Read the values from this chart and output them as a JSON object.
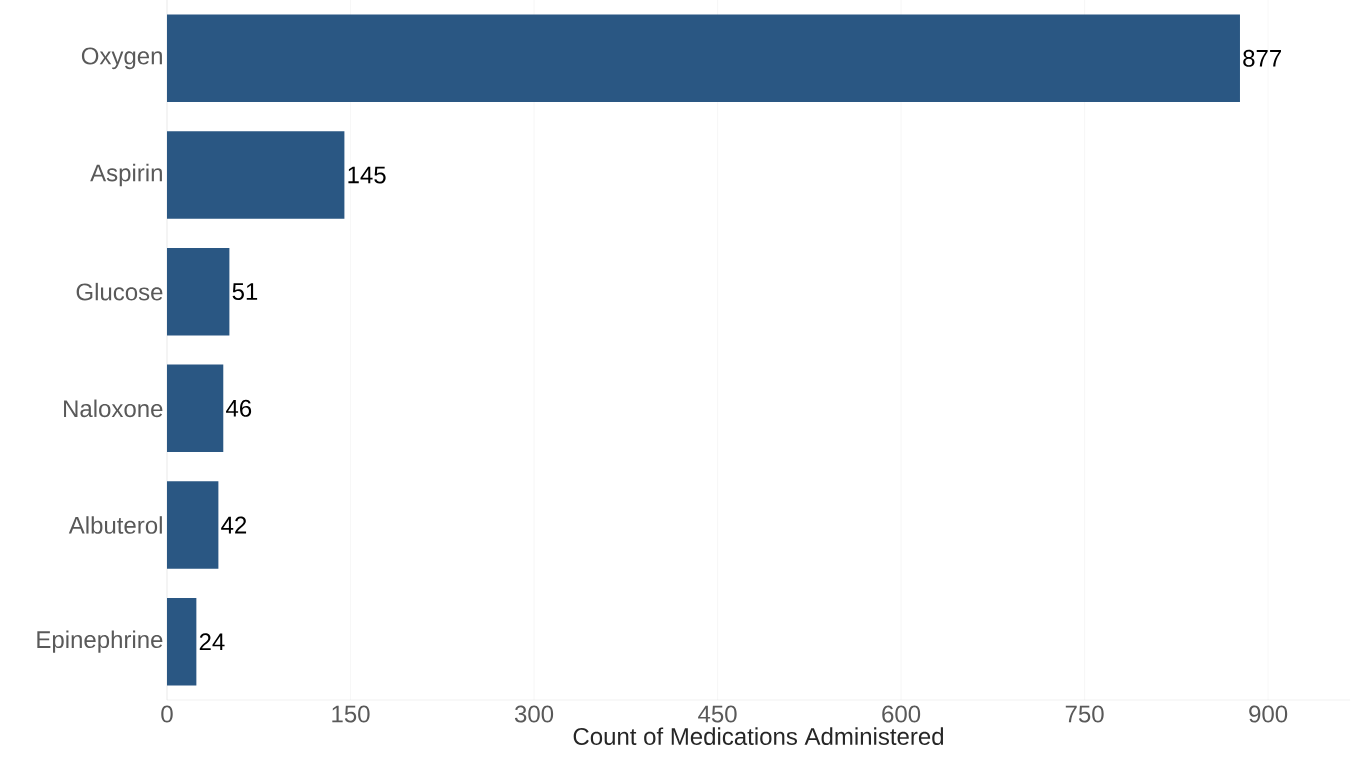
{
  "chart_data": {
    "type": "bar",
    "orientation": "horizontal",
    "xlabel": "Count of Medications Administered",
    "categories": [
      "Oxygen",
      "Aspirin",
      "Glucose",
      "Naloxone",
      "Albuterol",
      "Epinephrine"
    ],
    "values": [
      877,
      145,
      51,
      46,
      42,
      24
    ],
    "color": "#2a5783",
    "xlim": [
      0,
      967
    ],
    "xticks": [
      0,
      150,
      300,
      450,
      600,
      750,
      900
    ],
    "grid": "x",
    "data_labels": true
  }
}
